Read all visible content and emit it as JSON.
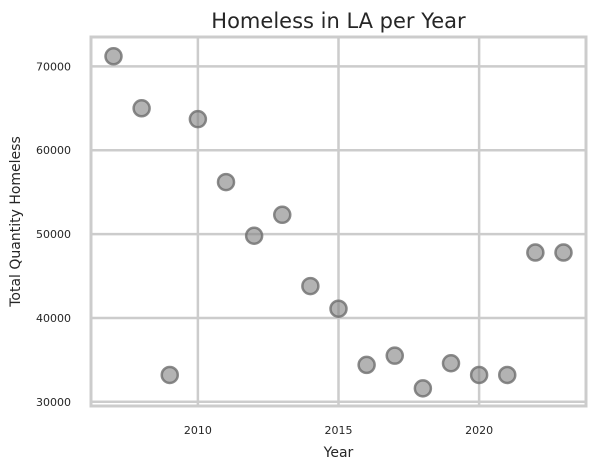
{
  "chart_data": {
    "type": "scatter",
    "title": "Homeless in LA per Year",
    "xlabel": "Year",
    "ylabel": "Total Quantity Homeless",
    "xlim": [
      2006.2,
      2023.8
    ],
    "ylim": [
      29500,
      73500
    ],
    "xticks": [
      2010,
      2015,
      2020
    ],
    "yticks": [
      30000,
      40000,
      50000,
      60000,
      70000
    ],
    "grid": true,
    "point_color": "#808080",
    "series": [
      {
        "x": [
          2007,
          2008,
          2009,
          2010,
          2011,
          2012,
          2013,
          2014,
          2015,
          2016,
          2017,
          2018,
          2019,
          2020,
          2021,
          2022,
          2023
        ],
        "y": [
          71200,
          65000,
          33200,
          63700,
          56200,
          49800,
          52300,
          43800,
          41100,
          34400,
          35500,
          31600,
          34600,
          33200,
          33200,
          47800,
          47800
        ]
      }
    ]
  }
}
